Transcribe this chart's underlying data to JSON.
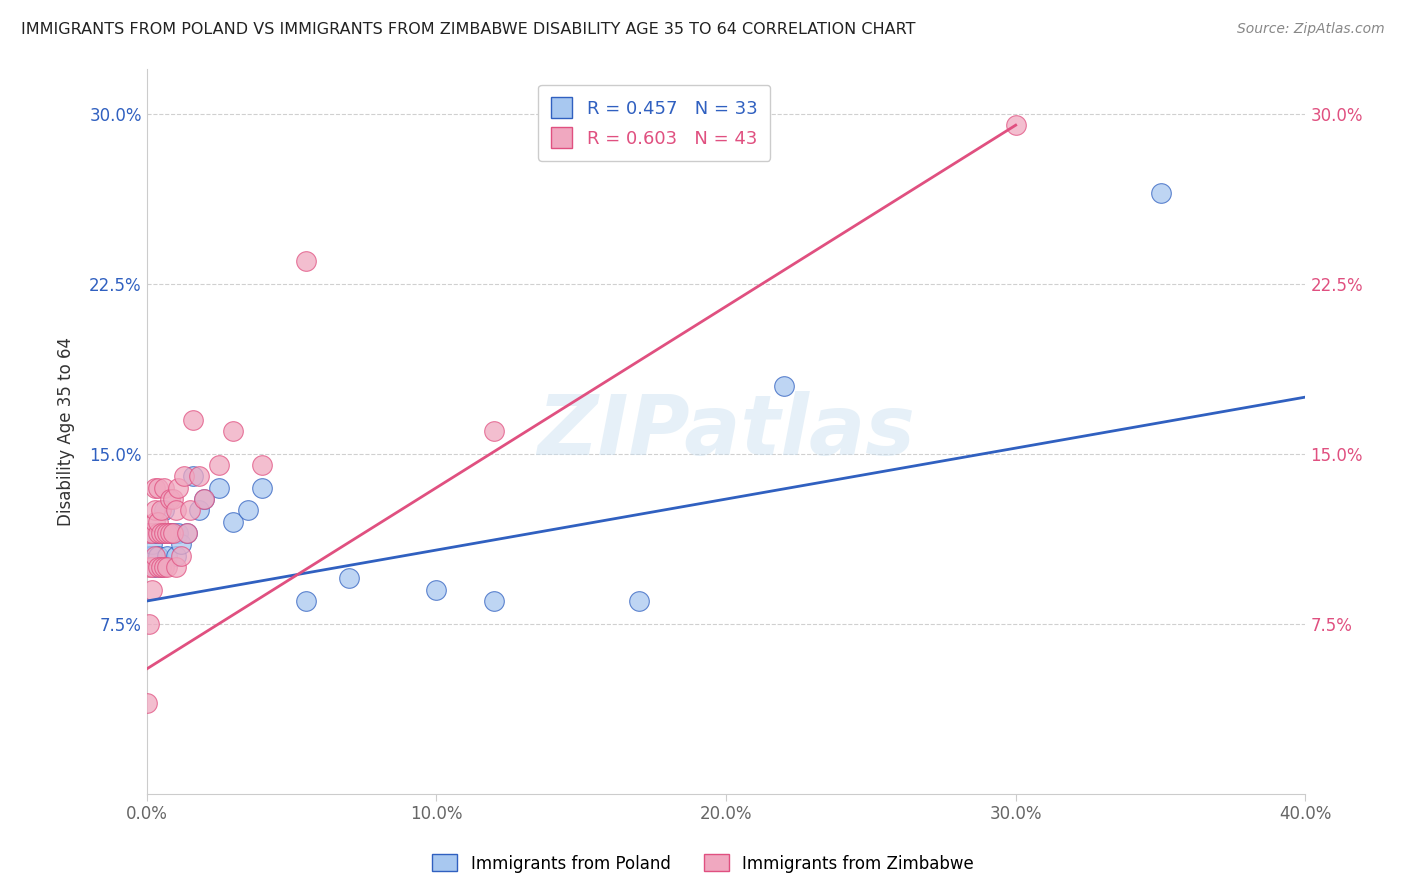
{
  "title": "IMMIGRANTS FROM POLAND VS IMMIGRANTS FROM ZIMBABWE DISABILITY AGE 35 TO 64 CORRELATION CHART",
  "source": "Source: ZipAtlas.com",
  "ylabel": "Disability Age 35 to 64",
  "xlim": [
    0.0,
    0.4
  ],
  "ylim": [
    0.0,
    0.32
  ],
  "xticks": [
    0.0,
    0.1,
    0.2,
    0.3,
    0.4
  ],
  "yticks": [
    0.075,
    0.15,
    0.225,
    0.3
  ],
  "xticklabels": [
    "0.0%",
    "10.0%",
    "20.0%",
    "30.0%",
    "40.0%"
  ],
  "yticklabels": [
    "7.5%",
    "15.0%",
    "22.5%",
    "30.0%"
  ],
  "poland_color": "#a8c8f0",
  "zimbabwe_color": "#f0a8c0",
  "poland_line_color": "#3060c0",
  "zimbabwe_line_color": "#e05080",
  "poland_R": 0.457,
  "poland_N": 33,
  "zimbabwe_R": 0.603,
  "zimbabwe_N": 43,
  "legend_poland_label": "Immigrants from Poland",
  "legend_zimbabwe_label": "Immigrants from Zimbabwe",
  "watermark": "ZIPatlas",
  "poland_x": [
    0.001,
    0.001,
    0.002,
    0.002,
    0.003,
    0.003,
    0.004,
    0.004,
    0.005,
    0.005,
    0.006,
    0.006,
    0.007,
    0.008,
    0.009,
    0.01,
    0.011,
    0.012,
    0.014,
    0.016,
    0.018,
    0.02,
    0.025,
    0.03,
    0.035,
    0.04,
    0.055,
    0.07,
    0.1,
    0.12,
    0.17,
    0.22,
    0.35
  ],
  "poland_y": [
    0.105,
    0.115,
    0.105,
    0.11,
    0.1,
    0.115,
    0.105,
    0.115,
    0.1,
    0.115,
    0.125,
    0.115,
    0.105,
    0.115,
    0.115,
    0.105,
    0.115,
    0.11,
    0.115,
    0.14,
    0.125,
    0.13,
    0.135,
    0.12,
    0.125,
    0.135,
    0.085,
    0.095,
    0.09,
    0.085,
    0.085,
    0.18,
    0.265
  ],
  "zimbabwe_x": [
    0.0,
    0.001,
    0.001,
    0.001,
    0.002,
    0.002,
    0.002,
    0.003,
    0.003,
    0.003,
    0.003,
    0.004,
    0.004,
    0.004,
    0.004,
    0.005,
    0.005,
    0.005,
    0.006,
    0.006,
    0.006,
    0.007,
    0.007,
    0.008,
    0.008,
    0.009,
    0.009,
    0.01,
    0.01,
    0.011,
    0.012,
    0.013,
    0.014,
    0.015,
    0.016,
    0.018,
    0.02,
    0.025,
    0.03,
    0.04,
    0.055,
    0.12,
    0.3
  ],
  "zimbabwe_y": [
    0.04,
    0.075,
    0.1,
    0.115,
    0.09,
    0.1,
    0.115,
    0.105,
    0.12,
    0.125,
    0.135,
    0.1,
    0.115,
    0.12,
    0.135,
    0.1,
    0.115,
    0.125,
    0.1,
    0.115,
    0.135,
    0.1,
    0.115,
    0.115,
    0.13,
    0.115,
    0.13,
    0.1,
    0.125,
    0.135,
    0.105,
    0.14,
    0.115,
    0.125,
    0.165,
    0.14,
    0.13,
    0.145,
    0.16,
    0.145,
    0.235,
    0.16,
    0.295
  ],
  "poland_line_x0": 0.0,
  "poland_line_y0": 0.085,
  "poland_line_x1": 0.4,
  "poland_line_y1": 0.175,
  "zimbabwe_line_x0": 0.0,
  "zimbabwe_line_y0": 0.055,
  "zimbabwe_line_x1": 0.3,
  "zimbabwe_line_y1": 0.295,
  "background_color": "#ffffff",
  "grid_color": "#d0d0d0"
}
